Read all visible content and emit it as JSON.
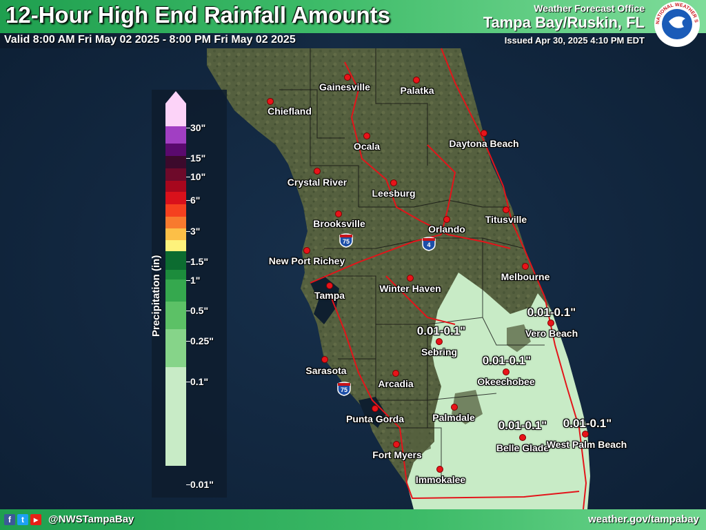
{
  "header": {
    "title": "12-Hour High End Rainfall Amounts",
    "valid": "Valid 8:00 AM Fri May 02 2025 - 8:00 PM Fri May 02 2025",
    "office_line1": "Weather Forecast Office",
    "office_line2": "Tampa Bay/Ruskin, FL",
    "issued": "Issued Apr 30, 2025 4:10 PM EDT"
  },
  "logo": {
    "text": "NATIONAL WEATHER SERVICE",
    "icon": "nws-logo"
  },
  "footer": {
    "handle": "@NWSTampaBay",
    "site": "weather.gov/tampabay",
    "icons": [
      "facebook-icon",
      "twitter-icon",
      "youtube-icon"
    ]
  },
  "legend": {
    "title": "Precipitation (in)",
    "labels": [
      "30\"",
      "15\"",
      "10\"",
      "6\"",
      "3\"",
      "1.5\"",
      "1\"",
      "0.5\"",
      "0.25\"",
      "0.1\"",
      "0.01\""
    ],
    "colors": [
      "#fcd3f8",
      "#a13fc3",
      "#5a0a6e",
      "#3c0a2c",
      "#6e0a2a",
      "#a7071d",
      "#d9111b",
      "#f5401f",
      "#f87a2e",
      "#fcbf47",
      "#fef27b",
      "#0c6c30",
      "#1c8c3c",
      "#35a84e",
      "#5cc166",
      "#86d489",
      "#c8ebc6"
    ]
  },
  "cities": [
    {
      "name": "Gainesville"
    },
    {
      "name": "Palatka"
    },
    {
      "name": "Chiefland"
    },
    {
      "name": "Ocala"
    },
    {
      "name": "Daytona Beach"
    },
    {
      "name": "Crystal River"
    },
    {
      "name": "Leesburg"
    },
    {
      "name": "Titusville"
    },
    {
      "name": "Brooksville"
    },
    {
      "name": "Orlando"
    },
    {
      "name": "New Port Richey"
    },
    {
      "name": "Melbourne"
    },
    {
      "name": "Tampa"
    },
    {
      "name": "Winter Haven"
    },
    {
      "name": "Vero Beach"
    },
    {
      "name": "Sebring"
    },
    {
      "name": "Okeechobee"
    },
    {
      "name": "Sarasota"
    },
    {
      "name": "Arcadia"
    },
    {
      "name": "Punta Gorda"
    },
    {
      "name": "Palmdale"
    },
    {
      "name": "Belle Glade"
    },
    {
      "name": "West Palm Beach"
    },
    {
      "name": "Fort Myers"
    },
    {
      "name": "Immokalee"
    }
  ],
  "amounts": [
    "0.01-0.1\"",
    "0.01-0.1\"",
    "0.01-0.1\"",
    "0.01-0.1\"",
    "0.01-0.1\""
  ],
  "shields": [
    "75",
    "4",
    "75"
  ]
}
